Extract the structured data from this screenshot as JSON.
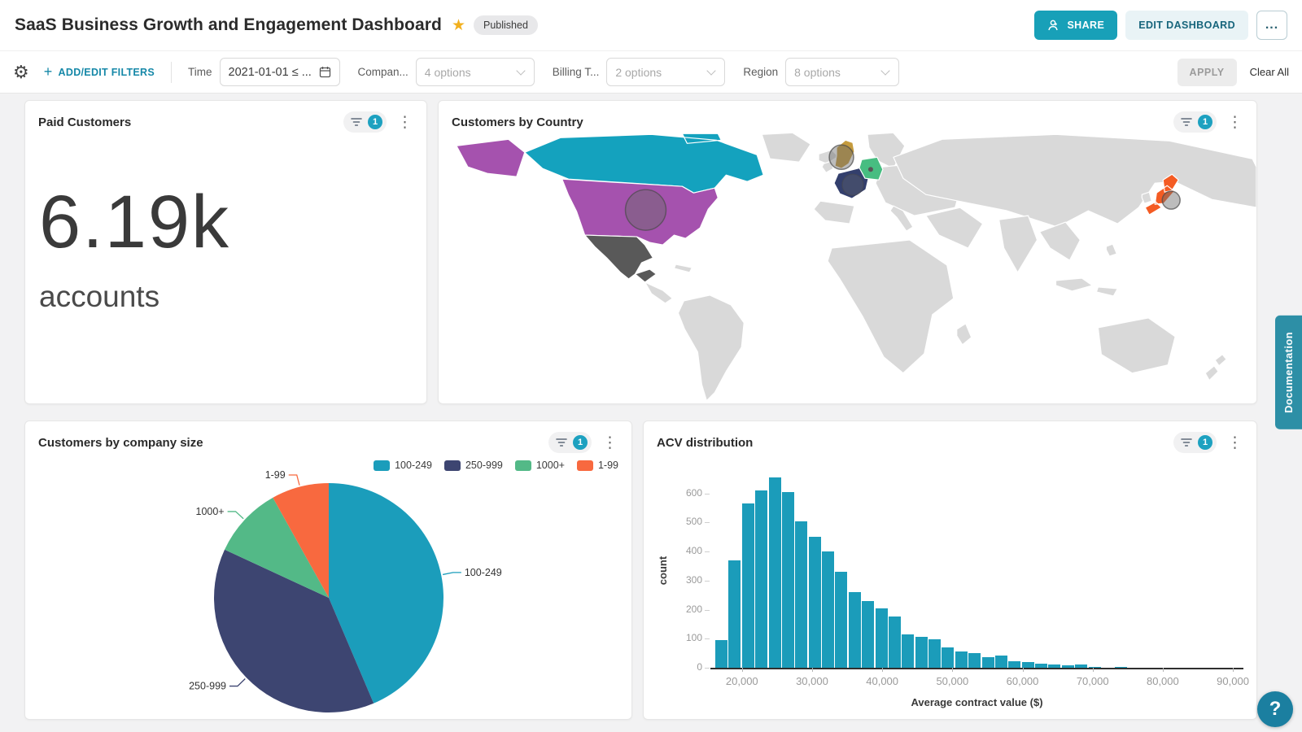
{
  "header": {
    "title": "SaaS Business Growth and Engagement Dashboard",
    "published_badge": "Published",
    "share_button": "SHARE",
    "edit_dashboard_button": "EDIT DASHBOARD",
    "more_button": "..."
  },
  "filter_bar": {
    "add_edit_filters": "ADD/EDIT FILTERS",
    "time_label": "Time",
    "time_value": "2021-01-01 ≤ ...",
    "company_label": "Compan...",
    "company_value": "4 options",
    "billing_label": "Billing T...",
    "billing_value": "2 options",
    "region_label": "Region",
    "region_value": "8 options",
    "apply_button": "APPLY",
    "clear_all": "Clear All"
  },
  "widgets": {
    "kpi": {
      "title": "Paid Customers",
      "filter_count": "1",
      "value": "6.19k",
      "label": "accounts"
    },
    "map": {
      "title": "Customers by Country",
      "filter_count": "1"
    },
    "pie": {
      "title": "Customers by company size",
      "filter_count": "1"
    },
    "hist": {
      "title": "ACV distribution",
      "filter_count": "1"
    }
  },
  "side": {
    "documentation_tab": "Documentation",
    "help_button": "?"
  },
  "chart_data": [
    {
      "type": "pie",
      "title": "Customers by company size",
      "labels": [
        "100-249",
        "250-999",
        "1000+",
        "1-99"
      ],
      "values_pct": [
        43.6,
        38.3,
        10.0,
        8.1
      ],
      "colors": [
        "#1b9dbb",
        "#3d4571",
        "#53b987",
        "#f8693f"
      ],
      "legend_position": "top-right"
    },
    {
      "type": "bar",
      "title": "ACV distribution",
      "xlabel": "Average contract value ($)",
      "ylabel": "count",
      "bin_start": 16200,
      "bin_width": 1900,
      "values": [
        95,
        370,
        565,
        610,
        655,
        605,
        505,
        450,
        400,
        330,
        260,
        230,
        205,
        175,
        115,
        107,
        98,
        70,
        55,
        50,
        37,
        42,
        22,
        20,
        15,
        12,
        8,
        10,
        2,
        0,
        4
      ],
      "x_ticks": [
        20000,
        30000,
        40000,
        50000,
        60000,
        70000,
        80000,
        90000
      ],
      "y_ticks": [
        0,
        100,
        200,
        300,
        400,
        500,
        600
      ],
      "x_range": [
        15500,
        91500
      ],
      "y_range": [
        0,
        680
      ],
      "bar_color": "#1b9cba",
      "grid": false
    },
    {
      "type": "map",
      "title": "Customers by Country",
      "base_color": "#d9d9d9",
      "highlighted": [
        {
          "country": "Canada",
          "color": "#14a2be"
        },
        {
          "country": "United States",
          "color": "#a552ae"
        },
        {
          "country": "Mexico",
          "color": "#595959"
        },
        {
          "country": "United Kingdom",
          "color": "#c59b3d"
        },
        {
          "country": "France",
          "color": "#333f6d"
        },
        {
          "country": "Germany",
          "color": "#47bd81"
        },
        {
          "country": "Japan",
          "color": "#f45b23"
        }
      ]
    }
  ]
}
